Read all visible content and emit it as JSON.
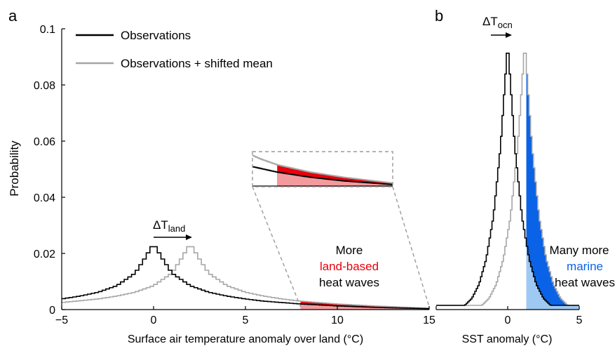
{
  "colors": {
    "observations": "#000000",
    "shifted": "#a6a6a6",
    "land_fill_dark": "#e8000b",
    "land_fill_light": "#f29a9e",
    "marine_fill_dark": "#0a63e6",
    "marine_fill_light": "#9ec9f2",
    "inset_box": "#9a9a9a"
  },
  "legend": {
    "observations": "Observations",
    "shifted": "Observations + shifted mean"
  },
  "chart_data": [
    {
      "panel_label": "a",
      "type": "line",
      "style": "step",
      "xlabel": "Surface air temperature anomaly over land (°C)",
      "ylabel": "Probability",
      "xlim": [
        -5,
        15
      ],
      "ylim": [
        0,
        0.1
      ],
      "xticks": [
        -5,
        0,
        5,
        10,
        15
      ],
      "yticks": [
        0,
        0.02,
        0.04,
        0.06,
        0.08,
        0.1
      ],
      "ytick_labels": [
        "0",
        "0.02",
        "0.04",
        "0.06",
        "0.08",
        "0.1"
      ],
      "series": [
        {
          "name": "Observations",
          "x": [
            -5,
            -4,
            -3,
            -2,
            -1,
            -0.5,
            0,
            0.5,
            1,
            2,
            3,
            4,
            5,
            6,
            8,
            10,
            12,
            15
          ],
          "y": [
            0.0038,
            0.0048,
            0.0062,
            0.0085,
            0.013,
            0.018,
            0.0235,
            0.018,
            0.013,
            0.0085,
            0.0062,
            0.0048,
            0.0038,
            0.003,
            0.002,
            0.0013,
            0.0008,
            0.0003
          ]
        },
        {
          "name": "Observations + shifted mean",
          "x": [
            -5,
            -3,
            -2,
            -1,
            0,
            1,
            1.5,
            2,
            2.5,
            3,
            4,
            5,
            6,
            7,
            8,
            10,
            12,
            15
          ],
          "y": [
            0.0025,
            0.0038,
            0.0048,
            0.0062,
            0.0085,
            0.013,
            0.018,
            0.0235,
            0.018,
            0.013,
            0.0085,
            0.0062,
            0.0048,
            0.0038,
            0.003,
            0.002,
            0.0013,
            0.0005
          ]
        }
      ],
      "shaded_threshold": 8,
      "annotation_shift": {
        "label": "ΔT",
        "subscript": "land",
        "from": 0,
        "to": 2
      },
      "annotation_lines": [
        "More",
        "land-based",
        "heat waves"
      ],
      "inset": {
        "x_range": [
          6.5,
          15
        ]
      }
    },
    {
      "panel_label": "b",
      "type": "line",
      "style": "step",
      "xlabel": "SST anomaly (°C)",
      "xlim": [
        -5,
        5
      ],
      "ylim": [
        0,
        0.1
      ],
      "xticks": [
        -5,
        0,
        5
      ],
      "series": [
        {
          "name": "Observations",
          "x": [
            -3,
            -2.5,
            -2,
            -1.5,
            -1,
            -0.5,
            0,
            0.5,
            1,
            1.5,
            2,
            2.5,
            3
          ],
          "y": [
            0.0015,
            0.004,
            0.009,
            0.018,
            0.033,
            0.058,
            0.095,
            0.058,
            0.033,
            0.018,
            0.009,
            0.004,
            0.0015
          ]
        },
        {
          "name": "Observations + shifted mean",
          "x": [
            -1.8,
            -1.3,
            -0.8,
            -0.3,
            0.2,
            0.7,
            1.2,
            1.7,
            2.2,
            2.7,
            3.2,
            3.7,
            4.2
          ],
          "y": [
            0.0015,
            0.004,
            0.009,
            0.018,
            0.033,
            0.058,
            0.095,
            0.058,
            0.033,
            0.018,
            0.009,
            0.004,
            0.0015
          ]
        }
      ],
      "shaded_threshold": 1.3,
      "annotation_shift": {
        "label": "ΔT",
        "subscript": "ocn",
        "from": 0,
        "to": 1.2
      },
      "annotation_lines": [
        "Many more",
        "marine",
        "heat waves"
      ]
    }
  ]
}
